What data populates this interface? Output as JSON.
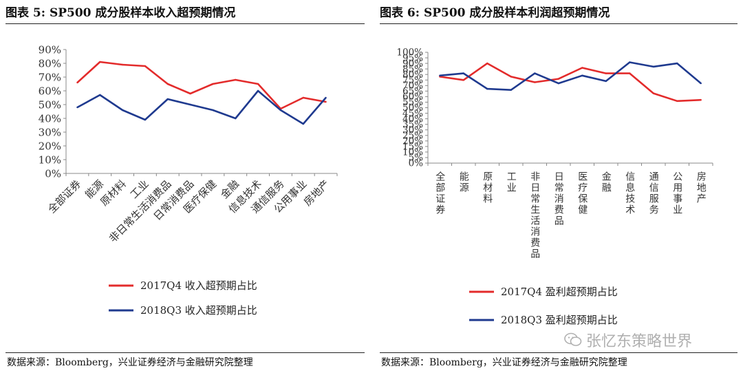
{
  "titles": {
    "left": "图表 5:  SP500 成分股样本收入超预期情况",
    "right": "图表 6:  SP500 成分股样本利润超预期情况"
  },
  "sources": {
    "left": "数据来源：Bloomberg，兴业证券经济与金融研究院整理",
    "right": "数据来源：Bloomberg，兴业证券经济与金融研究院整理"
  },
  "watermark": "张忆东策略世界",
  "colors": {
    "red": "#e32b2b",
    "blue": "#1f3a8f",
    "axis": "#888888"
  },
  "chart_data": [
    {
      "type": "line",
      "title": "SP500 成分股样本收入超预期情况",
      "categories": [
        "全部证券",
        "能源",
        "原材料",
        "工业",
        "非日常生活消费品",
        "日常消费品",
        "医疗保健",
        "金融",
        "信息技术",
        "通信服务",
        "公用事业",
        "房地产"
      ],
      "ylim": [
        0,
        90
      ],
      "yticks": [
        "0%",
        "10%",
        "20%",
        "30%",
        "40%",
        "50%",
        "60%",
        "70%",
        "80%",
        "90%"
      ],
      "series": [
        {
          "name": "2017Q4 收入超预期占比",
          "color": "red",
          "values": [
            66,
            81,
            79,
            78,
            65,
            58,
            65,
            68,
            65,
            47,
            55,
            52
          ]
        },
        {
          "name": "2018Q3 收入超预期占比",
          "color": "blue",
          "values": [
            48,
            57,
            46,
            39,
            54,
            50,
            46,
            40,
            60,
            46,
            36,
            55
          ]
        }
      ]
    },
    {
      "type": "line",
      "title": "SP500 成分股样本利润超预期情况",
      "categories": [
        "全部证券",
        "能源",
        "原材料",
        "工业",
        "非日常生活消费品",
        "日常消费品",
        "医疗保健",
        "金融",
        "信息技术",
        "通信服务",
        "公用事业",
        "房地产"
      ],
      "ylim": [
        0,
        100
      ],
      "yticks": [
        "0%",
        "5%",
        "10%",
        "15%",
        "20%",
        "25%",
        "30%",
        "35%",
        "40%",
        "45%",
        "50%",
        "55%",
        "60%",
        "65%",
        "70%",
        "75%",
        "80%",
        "85%",
        "90%",
        "95%",
        "100%"
      ],
      "series": [
        {
          "name": "2017Q4 盈利超预期占比",
          "color": "red",
          "values": [
            78,
            75,
            90,
            78,
            73,
            76,
            86,
            81,
            81,
            63,
            56,
            57
          ]
        },
        {
          "name": "2018Q3 盈利超预期占比",
          "color": "blue",
          "values": [
            79,
            81,
            67,
            66,
            81,
            72,
            79,
            74,
            91,
            87,
            90,
            72
          ]
        }
      ]
    }
  ]
}
